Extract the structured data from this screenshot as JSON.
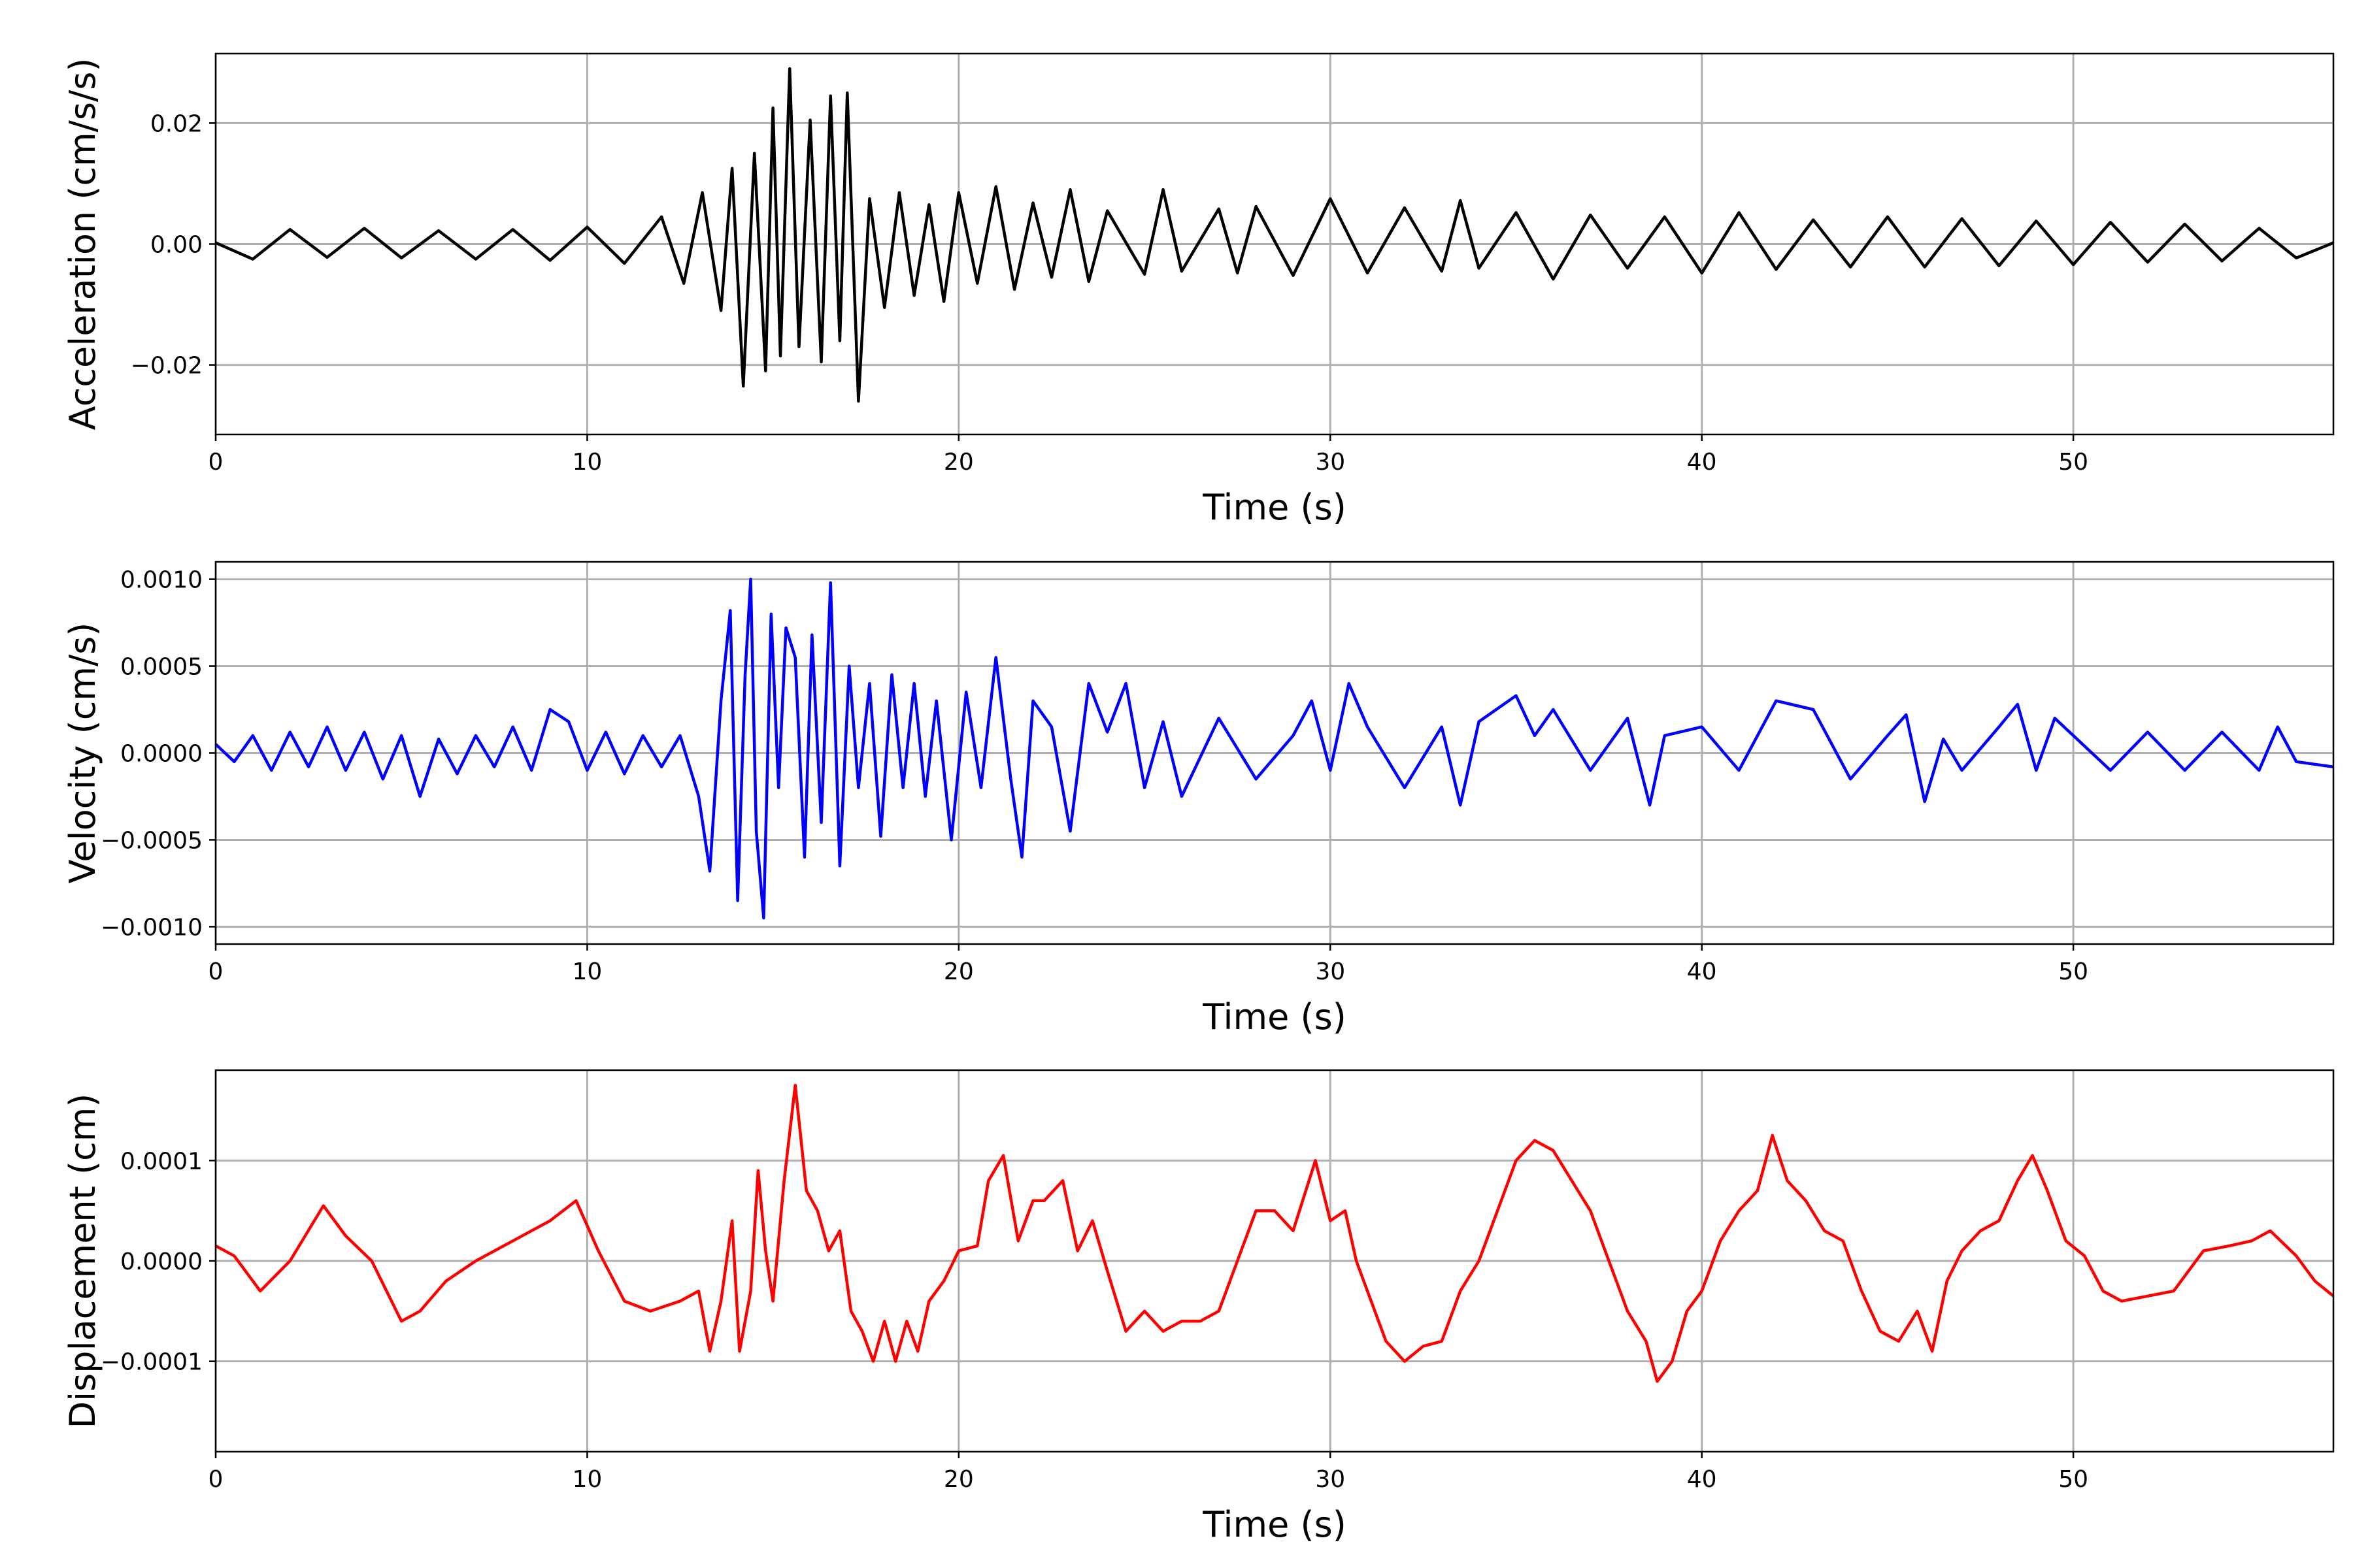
{
  "figure": {
    "background": "#ffffff",
    "grid_color": "#b0b0b0"
  },
  "chart_data": [
    {
      "type": "line",
      "xlabel": "Time (s)",
      "ylabel": "Acceleration (cm/s/s)",
      "xlim": [
        0,
        57
      ],
      "ylim": [
        -0.0315,
        0.0315
      ],
      "xticks": [
        0,
        10,
        20,
        30,
        40,
        50
      ],
      "xtick_labels": [
        "0",
        "10",
        "20",
        "30",
        "40",
        "50"
      ],
      "yticks": [
        -0.02,
        0.0,
        0.02
      ],
      "ytick_labels": [
        "−0.02",
        "0.00",
        "0.02"
      ],
      "grid": true,
      "series": [
        {
          "color": "#000000",
          "x": [
            0,
            1,
            2,
            3,
            4,
            5,
            6,
            7,
            8,
            9,
            10,
            11,
            12,
            12.6,
            13.1,
            13.6,
            13.9,
            14.2,
            14.5,
            14.8,
            15.0,
            15.2,
            15.45,
            15.7,
            16.0,
            16.3,
            16.55,
            16.8,
            17.0,
            17.3,
            17.6,
            18.0,
            18.4,
            18.8,
            19.2,
            19.6,
            20.0,
            20.5,
            21.0,
            21.5,
            22.0,
            22.5,
            23.0,
            23.5,
            24.0,
            25.0,
            25.5,
            26.0,
            27.0,
            27.5,
            28.0,
            29.0,
            30.0,
            31.0,
            32.0,
            33.0,
            33.5,
            34.0,
            35.0,
            36.0,
            37.0,
            38.0,
            39.0,
            40.0,
            41.0,
            42.0,
            43.0,
            44.0,
            45.0,
            46.0,
            47.0,
            48.0,
            49.0,
            50.0,
            51.0,
            52.0,
            53.0,
            54.0,
            55.0,
            56.0,
            57.0
          ],
          "y": [
            0.0002,
            -0.0025,
            0.0024,
            -0.0022,
            0.0026,
            -0.0023,
            0.0022,
            -0.0025,
            0.0024,
            -0.0027,
            0.0028,
            -0.0032,
            0.0045,
            -0.0065,
            0.0085,
            -0.011,
            0.0125,
            -0.0235,
            0.015,
            -0.021,
            0.0225,
            -0.0185,
            0.029,
            -0.017,
            0.0205,
            -0.0195,
            0.0245,
            -0.016,
            0.025,
            -0.026,
            0.0075,
            -0.0105,
            0.0085,
            -0.0085,
            0.0065,
            -0.0095,
            0.0085,
            -0.0065,
            0.0095,
            -0.0075,
            0.0068,
            -0.0055,
            0.009,
            -0.0062,
            0.0055,
            -0.005,
            0.009,
            -0.0045,
            0.0058,
            -0.0048,
            0.0062,
            -0.0052,
            0.0075,
            -0.0048,
            0.006,
            -0.0045,
            0.0072,
            -0.004,
            0.0052,
            -0.0058,
            0.0048,
            -0.004,
            0.0045,
            -0.0048,
            0.0052,
            -0.0042,
            0.004,
            -0.0038,
            0.0045,
            -0.0038,
            0.0042,
            -0.0036,
            0.0038,
            -0.0034,
            0.0036,
            -0.003,
            0.0033,
            -0.0028,
            0.0026,
            -0.0023,
            0.0002
          ]
        }
      ]
    },
    {
      "type": "line",
      "xlabel": "Time (s)",
      "ylabel": "Velocity (cm/s)",
      "xlim": [
        0,
        57
      ],
      "ylim": [
        -0.0011,
        0.0011
      ],
      "xticks": [
        0,
        10,
        20,
        30,
        40,
        50
      ],
      "xtick_labels": [
        "0",
        "10",
        "20",
        "30",
        "40",
        "50"
      ],
      "yticks": [
        -0.001,
        -0.0005,
        0.0,
        0.0005,
        0.001
      ],
      "ytick_labels": [
        "−0.0010",
        "−0.0005",
        "0.0000",
        "0.0005",
        "0.0010"
      ],
      "grid": true,
      "series": [
        {
          "color": "#0000ff",
          "x": [
            0,
            0.5,
            1,
            1.5,
            2,
            2.5,
            3,
            3.5,
            4,
            4.5,
            5,
            5.5,
            6,
            6.5,
            7,
            7.5,
            8,
            8.5,
            9,
            9.5,
            10,
            10.5,
            11,
            11.5,
            12,
            12.5,
            13.0,
            13.3,
            13.6,
            13.85,
            14.05,
            14.25,
            14.4,
            14.55,
            14.75,
            14.95,
            15.15,
            15.35,
            15.6,
            15.85,
            16.05,
            16.3,
            16.55,
            16.8,
            17.05,
            17.3,
            17.6,
            17.9,
            18.2,
            18.5,
            18.8,
            19.1,
            19.4,
            19.8,
            20.2,
            20.6,
            21.0,
            21.4,
            21.7,
            22.0,
            22.5,
            23.0,
            23.5,
            24.0,
            24.5,
            25.0,
            25.5,
            26.0,
            27.0,
            28.0,
            29.0,
            29.5,
            30.0,
            30.5,
            31.0,
            32.0,
            33.0,
            33.5,
            34.0,
            35.0,
            35.5,
            36.0,
            37.0,
            38.0,
            38.6,
            39.0,
            40.0,
            41.0,
            42.0,
            43.0,
            44.0,
            45.0,
            45.5,
            46.0,
            46.5,
            47.0,
            48.0,
            48.5,
            49.0,
            49.5,
            50.0,
            51.0,
            52.0,
            53.0,
            54.0,
            55.0,
            55.5,
            56.0,
            57.0
          ],
          "y": [
            5e-05,
            -5e-05,
            0.0001,
            -0.0001,
            0.00012,
            -8e-05,
            0.00015,
            -0.0001,
            0.00012,
            -0.00015,
            0.0001,
            -0.00025,
            8e-05,
            -0.00012,
            0.0001,
            -8e-05,
            0.00015,
            -0.0001,
            0.00025,
            0.00018,
            -0.0001,
            0.00012,
            -0.00012,
            0.0001,
            -8e-05,
            0.0001,
            -0.00025,
            -0.00068,
            0.0003,
            0.00082,
            -0.00085,
            0.00045,
            0.001,
            -0.00045,
            -0.00095,
            0.0008,
            -0.0002,
            0.00072,
            0.00055,
            -0.0006,
            0.00068,
            -0.0004,
            0.00098,
            -0.00065,
            0.0005,
            -0.0002,
            0.0004,
            -0.00048,
            0.00045,
            -0.0002,
            0.0004,
            -0.00025,
            0.0003,
            -0.0005,
            0.00035,
            -0.0002,
            0.00055,
            -0.00015,
            -0.0006,
            0.0003,
            0.00015,
            -0.00045,
            0.0004,
            0.00012,
            0.0004,
            -0.0002,
            0.00018,
            -0.00025,
            0.0002,
            -0.00015,
            0.0001,
            0.0003,
            -0.0001,
            0.0004,
            0.00015,
            -0.0002,
            0.00015,
            -0.0003,
            0.00018,
            0.00033,
            0.0001,
            0.00025,
            -0.0001,
            0.0002,
            -0.0003,
            0.0001,
            0.00015,
            -0.0001,
            0.0003,
            0.00025,
            -0.00015,
            0.0001,
            0.00022,
            -0.00028,
            8e-05,
            -0.0001,
            0.00015,
            0.00028,
            -0.0001,
            0.0002,
            0.0001,
            -0.0001,
            0.00012,
            -0.0001,
            0.00012,
            -0.0001,
            0.00015,
            -5e-05,
            -8e-05
          ]
        }
      ]
    },
    {
      "type": "line",
      "xlabel": "Time (s)",
      "ylabel": "Displacement (cm)",
      "xlim": [
        0,
        57
      ],
      "ylim": [
        -0.00019,
        0.00019
      ],
      "xticks": [
        0,
        10,
        20,
        30,
        40,
        50
      ],
      "xtick_labels": [
        "0",
        "10",
        "20",
        "30",
        "40",
        "50"
      ],
      "yticks": [
        -0.0001,
        0.0,
        0.0001
      ],
      "ytick_labels": [
        "−0.0001",
        "0.0000",
        "0.0001"
      ],
      "grid": true,
      "series": [
        {
          "color": "#ff0000",
          "x": [
            0,
            0.5,
            1.2,
            2.0,
            2.9,
            3.5,
            4.2,
            5.0,
            5.5,
            6.2,
            7.0,
            8.0,
            9.0,
            9.7,
            10.3,
            11.0,
            11.7,
            12.5,
            13.0,
            13.3,
            13.6,
            13.9,
            14.1,
            14.4,
            14.6,
            14.8,
            15.0,
            15.3,
            15.6,
            15.9,
            16.2,
            16.5,
            16.8,
            17.1,
            17.4,
            17.7,
            18.0,
            18.3,
            18.6,
            18.9,
            19.2,
            19.6,
            20.0,
            20.5,
            20.8,
            21.2,
            21.6,
            22.0,
            22.3,
            22.8,
            23.2,
            23.6,
            24.0,
            24.5,
            25.0,
            25.5,
            26.0,
            26.5,
            27.0,
            27.5,
            28.0,
            28.5,
            29.0,
            29.6,
            30.0,
            30.4,
            30.7,
            31.0,
            31.5,
            32.0,
            32.5,
            33.0,
            33.5,
            34.0,
            34.5,
            35.0,
            35.5,
            36.0,
            36.5,
            37.0,
            37.5,
            38.0,
            38.5,
            38.8,
            39.2,
            39.6,
            40.0,
            40.5,
            41.0,
            41.5,
            41.9,
            42.3,
            42.8,
            43.3,
            43.8,
            44.3,
            44.8,
            45.3,
            45.8,
            46.2,
            46.6,
            47.0,
            47.5,
            48.0,
            48.5,
            48.9,
            49.3,
            49.8,
            50.3,
            50.8,
            51.3,
            52.0,
            52.7,
            53.5,
            54.2,
            54.8,
            55.3,
            56.0,
            56.5,
            57.0
          ],
          "y": [
            1.5e-05,
            5e-06,
            -3e-05,
            0.0,
            5.5e-05,
            2.5e-05,
            0.0,
            -6e-05,
            -5e-05,
            -2e-05,
            0.0,
            2e-05,
            4e-05,
            6e-05,
            1e-05,
            -4e-05,
            -5e-05,
            -4e-05,
            -3e-05,
            -9e-05,
            -4e-05,
            4e-05,
            -9e-05,
            -3e-05,
            9e-05,
            1e-05,
            -4e-05,
            8e-05,
            0.000175,
            7e-05,
            5e-05,
            1e-05,
            3e-05,
            -5e-05,
            -7e-05,
            -0.0001,
            -6e-05,
            -0.0001,
            -6e-05,
            -9e-05,
            -4e-05,
            -2e-05,
            1e-05,
            1.5e-05,
            8e-05,
            0.000105,
            2e-05,
            6e-05,
            6e-05,
            8e-05,
            1e-05,
            4e-05,
            -1e-05,
            -7e-05,
            -5e-05,
            -7e-05,
            -6e-05,
            -6e-05,
            -5e-05,
            0.0,
            5e-05,
            5e-05,
            3e-05,
            0.0001,
            4e-05,
            5e-05,
            0.0,
            -3e-05,
            -8e-05,
            -0.0001,
            -8.5e-05,
            -8e-05,
            -3e-05,
            0.0,
            5e-05,
            0.0001,
            0.00012,
            0.00011,
            8e-05,
            5e-05,
            0.0,
            -5e-05,
            -8e-05,
            -0.00012,
            -0.0001,
            -5e-05,
            -3e-05,
            2e-05,
            5e-05,
            7e-05,
            0.000125,
            8e-05,
            6e-05,
            3e-05,
            2e-05,
            -3e-05,
            -7e-05,
            -8e-05,
            -5e-05,
            -9e-05,
            -2e-05,
            1e-05,
            3e-05,
            4e-05,
            8e-05,
            0.000105,
            7e-05,
            2e-05,
            5e-06,
            -3e-05,
            -4e-05,
            -3.5e-05,
            -3e-05,
            1e-05,
            1.5e-05,
            2e-05,
            3e-05,
            5e-06,
            -2e-05,
            -3.5e-05
          ]
        }
      ]
    }
  ]
}
